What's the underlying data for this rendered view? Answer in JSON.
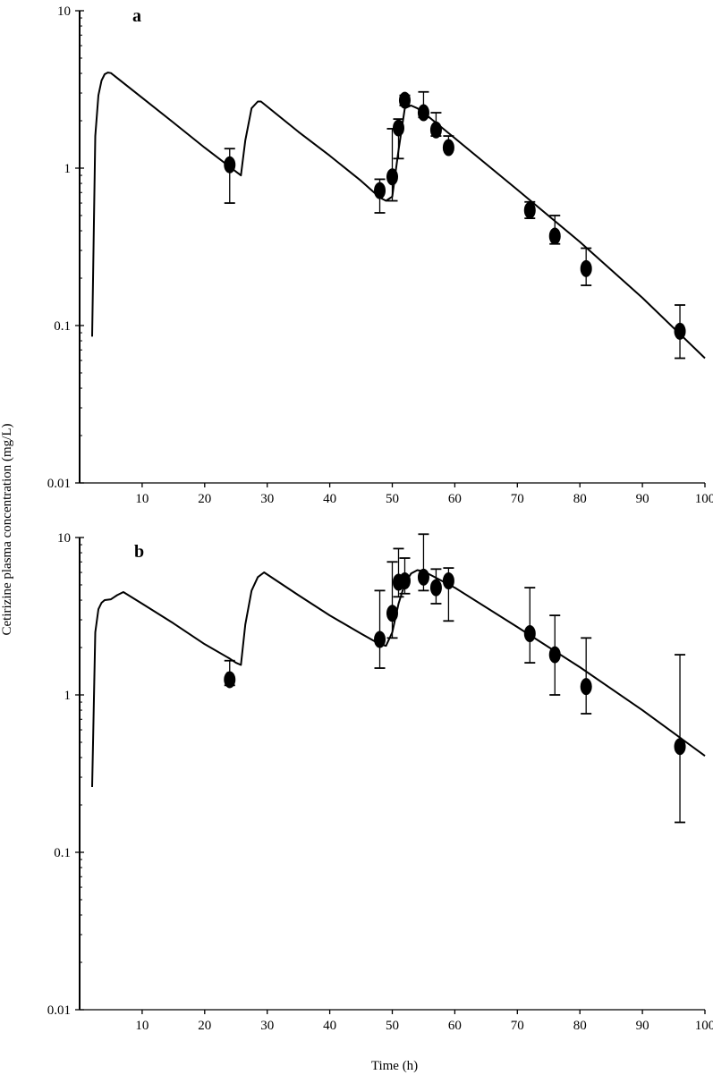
{
  "figure": {
    "ylabel": "Cetirizine  plasma concentration  (mg/L)",
    "xlabel": "Time (h)"
  },
  "chart_data": [
    {
      "type": "scatter",
      "panel_label": "a",
      "title": "",
      "xlabel": "",
      "ylabel": "",
      "xlim": [
        0,
        100
      ],
      "ylim": [
        0.01,
        10
      ],
      "yscale": "log",
      "grid": false,
      "x_ticks": [
        "10",
        "20",
        "30",
        "40",
        "50",
        "60",
        "70",
        "80",
        "90",
        "100"
      ],
      "y_ticks": [
        "0.01",
        "0.1",
        "1",
        "10"
      ],
      "series": [
        {
          "kind": "observed",
          "x": [
            24,
            48,
            50,
            51,
            52,
            55,
            57,
            59,
            72,
            76,
            81,
            96
          ],
          "y": [
            1.05,
            0.72,
            0.88,
            1.8,
            2.7,
            2.25,
            1.75,
            1.35,
            0.54,
            0.37,
            0.23,
            0.092
          ],
          "err_low": [
            0.6,
            0.52,
            0.62,
            1.15,
            2.5,
            2.1,
            1.6,
            1.3,
            0.48,
            0.33,
            0.18,
            0.062
          ],
          "err_high": [
            1.33,
            0.85,
            1.78,
            2.05,
            2.9,
            3.05,
            2.25,
            1.6,
            0.61,
            0.5,
            0.31,
            0.135
          ]
        },
        {
          "kind": "predicted",
          "x": [
            2,
            2.5,
            3,
            3.5,
            4,
            4.5,
            5,
            10,
            15,
            20,
            24,
            25,
            25.8,
            26.5,
            27.5,
            28.5,
            29,
            35,
            40,
            45,
            48,
            49,
            50,
            51,
            52,
            53,
            54,
            55,
            60,
            70,
            80,
            90,
            100
          ],
          "y": [
            0.085,
            1.6,
            2.9,
            3.6,
            3.95,
            4.05,
            4.02,
            2.8,
            1.95,
            1.35,
            1.02,
            0.95,
            0.9,
            1.5,
            2.4,
            2.65,
            2.65,
            1.7,
            1.2,
            0.83,
            0.65,
            0.62,
            0.66,
            1.3,
            2.4,
            2.5,
            2.4,
            2.25,
            1.55,
            0.73,
            0.34,
            0.15,
            0.062
          ]
        }
      ]
    },
    {
      "type": "scatter",
      "panel_label": "b",
      "title": "",
      "xlabel": "",
      "ylabel": "",
      "xlim": [
        0,
        100
      ],
      "ylim": [
        0.01,
        10
      ],
      "yscale": "log",
      "grid": false,
      "x_ticks": [
        "10",
        "20",
        "30",
        "40",
        "50",
        "60",
        "70",
        "80",
        "90",
        "100"
      ],
      "y_ticks": [
        "0.01",
        "0.1",
        "1",
        "10"
      ],
      "series": [
        {
          "kind": "observed",
          "x": [
            24,
            48,
            50,
            51,
            52,
            55,
            57,
            59,
            72,
            76,
            81,
            96
          ],
          "y": [
            1.25,
            2.25,
            3.3,
            5.2,
            5.3,
            5.6,
            4.8,
            5.3,
            2.45,
            1.8,
            1.13,
            0.47
          ],
          "err_low": [
            1.15,
            1.48,
            2.3,
            4.2,
            4.4,
            4.6,
            3.8,
            2.95,
            1.6,
            1.0,
            0.76,
            0.155
          ],
          "err_high": [
            1.65,
            4.6,
            7.0,
            8.5,
            7.4,
            10.5,
            6.3,
            6.4,
            4.8,
            3.2,
            2.3,
            1.8
          ]
        },
        {
          "kind": "predicted",
          "x": [
            2,
            2.5,
            3,
            3.5,
            4,
            5,
            6,
            7,
            10,
            15,
            20,
            24,
            25,
            25.8,
            26.5,
            27.5,
            28.5,
            29.5,
            35,
            40,
            45,
            48,
            49,
            50,
            51,
            52,
            53,
            54,
            55,
            60,
            70,
            80,
            90,
            100
          ],
          "y": [
            0.26,
            2.5,
            3.5,
            3.85,
            4.0,
            4.05,
            4.3,
            4.5,
            3.8,
            2.85,
            2.1,
            1.7,
            1.6,
            1.55,
            2.8,
            4.6,
            5.6,
            6.0,
            4.3,
            3.2,
            2.45,
            2.1,
            2.05,
            2.5,
            3.8,
            5.1,
            5.9,
            6.2,
            6.1,
            4.8,
            2.7,
            1.5,
            0.8,
            0.41
          ]
        }
      ]
    }
  ]
}
